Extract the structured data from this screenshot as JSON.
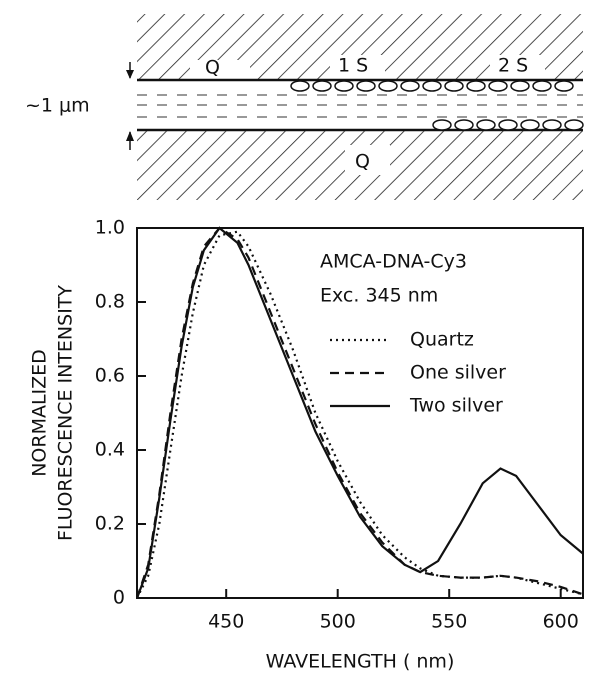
{
  "diagram": {
    "labels": [
      "Q",
      "1 S",
      "2 S",
      "~1 μm",
      "Q"
    ]
  },
  "chart_data": {
    "type": "line",
    "annotations": [
      "AMCA-DNA-Cy3",
      "Exc. 345 nm"
    ],
    "xlabel": "WAVELENGTH ( nm)",
    "ylabel": [
      "NORMALIZED",
      "FLUORESCENCE INTENSITY"
    ],
    "xlim": [
      410,
      610
    ],
    "xticks": [
      450,
      500,
      550,
      600
    ],
    "ylim": [
      0,
      1
    ],
    "yticks": [
      0,
      0.2,
      0.4,
      0.6,
      0.8,
      {
        "value": 1,
        "label": "1.0"
      }
    ],
    "x": [
      410,
      415,
      420,
      425,
      430,
      435,
      440,
      447,
      455,
      460,
      470,
      480,
      490,
      500,
      510,
      520,
      530,
      537,
      545,
      555,
      565,
      573,
      580,
      590,
      600,
      610
    ],
    "series": [
      {
        "name": "Quartz",
        "color": "#111",
        "dash": "dotted",
        "values": [
          0,
          0.06,
          0.2,
          0.4,
          0.6,
          0.77,
          0.9,
          0.98,
          0.99,
          0.95,
          0.82,
          0.67,
          0.5,
          0.37,
          0.26,
          0.17,
          0.11,
          0.08,
          0.06,
          0.055,
          0.055,
          0.06,
          0.055,
          0.04,
          0.025,
          0.01
        ]
      },
      {
        "name": "One silver",
        "color": "#111",
        "dash": "dashed",
        "values": [
          0,
          0.09,
          0.28,
          0.5,
          0.7,
          0.85,
          0.95,
          1.0,
          0.97,
          0.92,
          0.77,
          0.62,
          0.47,
          0.34,
          0.23,
          0.15,
          0.09,
          0.07,
          0.06,
          0.055,
          0.055,
          0.06,
          0.055,
          0.045,
          0.03,
          0.01
        ]
      },
      {
        "name": "Two silver",
        "color": "#111",
        "dash": "solid",
        "values": [
          0,
          0.08,
          0.27,
          0.48,
          0.68,
          0.84,
          0.94,
          1.0,
          0.96,
          0.9,
          0.75,
          0.6,
          0.45,
          0.33,
          0.22,
          0.14,
          0.09,
          0.07,
          0.1,
          0.2,
          0.31,
          0.35,
          0.33,
          0.25,
          0.17,
          0.12
        ]
      }
    ]
  }
}
